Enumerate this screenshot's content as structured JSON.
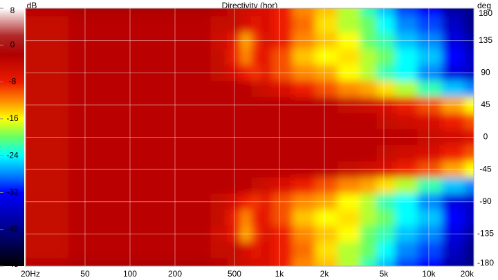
{
  "chart_data": {
    "type": "heatmap",
    "title": "Directivity (hor)",
    "colorbar_label": "dB",
    "y_label": "deg",
    "x": [
      20,
      30,
      50,
      70,
      100,
      150,
      200,
      300,
      400,
      500,
      600,
      700,
      800,
      1000,
      1500,
      2000,
      3000,
      4000,
      5000,
      7000,
      10000,
      15000,
      20000
    ],
    "y": [
      180,
      157.5,
      135,
      112.5,
      90,
      67.5,
      45,
      22.5,
      0,
      -22.5,
      -45,
      -67.5,
      -90,
      -112.5,
      -135,
      -157.5,
      -180
    ],
    "values": [
      [
        -3,
        -3,
        -2,
        -2,
        -2,
        -2,
        -2,
        -2,
        -3,
        -4,
        -5,
        -6,
        -6,
        -8,
        -12,
        -14,
        -18,
        -22,
        -26,
        -30,
        -32,
        -38,
        -40
      ],
      [
        -4,
        -4,
        -3,
        -3,
        -3,
        -3,
        -3,
        -3,
        -4,
        -4,
        -6,
        -7,
        -6,
        -8,
        -11,
        -15,
        -18,
        -20,
        -24,
        -28,
        -30,
        -36,
        -40
      ],
      [
        -4,
        -4,
        -3,
        -3,
        -3,
        -3,
        -3,
        -3,
        -5,
        -7,
        -13,
        -9,
        -6,
        -8,
        -12,
        -14,
        -16,
        -20,
        -22,
        -26,
        -28,
        -34,
        -38
      ],
      [
        -4,
        -4,
        -3,
        -3,
        -3,
        -3,
        -3,
        -3,
        -4,
        -8,
        -12,
        -8,
        -7,
        -10,
        -14,
        -16,
        -15,
        -18,
        -20,
        -24,
        -26,
        -32,
        -36
      ],
      [
        -4,
        -4,
        -3,
        -3,
        -3,
        -3,
        -3,
        -3,
        -4,
        -6,
        -8,
        -9,
        -7,
        -10,
        -12,
        -13,
        -16,
        -18,
        -22,
        -24,
        -28,
        -34,
        -36
      ],
      [
        -4,
        -4,
        -3,
        -3,
        -3,
        -3,
        -3,
        -3,
        -3,
        -3,
        -3,
        -4,
        -5,
        -6,
        -8,
        -10,
        -12,
        -13,
        -15,
        -18,
        -22,
        -26,
        -28
      ],
      [
        -4,
        -4,
        -3,
        -3,
        -3,
        -3,
        -3,
        -3,
        -3,
        -3,
        -3,
        -3,
        -3,
        -3,
        -3,
        -3,
        -4,
        -5,
        -6,
        -8,
        -10,
        -13,
        -16
      ],
      [
        -4,
        -4,
        -3,
        -3,
        -3,
        -3,
        -3,
        -3,
        -3,
        -3,
        -3,
        -3,
        -3,
        -3,
        -3,
        -3,
        -3,
        -3,
        -4,
        -5,
        -6,
        -8,
        -10
      ],
      [
        -4,
        -4,
        -3,
        -3,
        -3,
        -3,
        -3,
        -3,
        -3,
        -3,
        -3,
        -3,
        -3,
        -3,
        -3,
        -3,
        -3,
        -3,
        -3,
        -3,
        -4,
        -5,
        -6
      ],
      [
        -4,
        -4,
        -3,
        -3,
        -3,
        -3,
        -3,
        -3,
        -3,
        -3,
        -3,
        -3,
        -3,
        -3,
        -3,
        -3,
        -3,
        -3,
        -4,
        -5,
        -6,
        -8,
        -10
      ],
      [
        -4,
        -4,
        -3,
        -3,
        -3,
        -3,
        -3,
        -3,
        -3,
        -3,
        -3,
        -3,
        -3,
        -3,
        -3,
        -3,
        -4,
        -5,
        -6,
        -8,
        -10,
        -13,
        -16
      ],
      [
        -4,
        -4,
        -3,
        -3,
        -3,
        -3,
        -3,
        -3,
        -3,
        -3,
        -3,
        -4,
        -5,
        -6,
        -8,
        -10,
        -12,
        -13,
        -15,
        -18,
        -22,
        -26,
        -28
      ],
      [
        -4,
        -4,
        -3,
        -3,
        -3,
        -3,
        -3,
        -3,
        -4,
        -6,
        -8,
        -9,
        -7,
        -10,
        -12,
        -13,
        -16,
        -18,
        -22,
        -24,
        -28,
        -34,
        -36
      ],
      [
        -4,
        -4,
        -3,
        -3,
        -3,
        -3,
        -3,
        -3,
        -4,
        -8,
        -12,
        -8,
        -7,
        -10,
        -14,
        -16,
        -15,
        -18,
        -20,
        -24,
        -26,
        -32,
        -36
      ],
      [
        -4,
        -4,
        -3,
        -3,
        -3,
        -3,
        -3,
        -3,
        -5,
        -7,
        -13,
        -9,
        -6,
        -8,
        -12,
        -14,
        -16,
        -20,
        -22,
        -26,
        -28,
        -34,
        -38
      ],
      [
        -4,
        -4,
        -3,
        -3,
        -3,
        -3,
        -3,
        -3,
        -4,
        -4,
        -6,
        -7,
        -6,
        -8,
        -11,
        -15,
        -18,
        -20,
        -24,
        -28,
        -30,
        -36,
        -40
      ],
      [
        -3,
        -3,
        -2,
        -2,
        -2,
        -2,
        -2,
        -2,
        -3,
        -4,
        -5,
        -6,
        -6,
        -8,
        -12,
        -14,
        -18,
        -22,
        -26,
        -30,
        -32,
        -38,
        -40
      ]
    ],
    "x_log": true,
    "xlim": [
      20,
      20000
    ],
    "xticks": [
      {
        "value": 20,
        "label": "20Hz"
      },
      50,
      100,
      200,
      500,
      {
        "value": 1000,
        "label": "1k"
      },
      {
        "value": 2000,
        "label": "2k"
      },
      {
        "value": 5000,
        "label": "5k"
      },
      {
        "value": 10000,
        "label": "10k"
      },
      {
        "value": 20000,
        "label": "20k"
      }
    ],
    "ylim": [
      -180,
      180
    ],
    "yticks": [
      180,
      135,
      90,
      45,
      0,
      -45,
      -90,
      -135,
      -180
    ],
    "zlim": [
      -48,
      8
    ],
    "zticks": [
      8,
      0,
      -8,
      -16,
      -24,
      -32,
      -40,
      -48
    ],
    "grid": true,
    "colorscale": [
      [
        8,
        "#ffffff"
      ],
      [
        2,
        "#b02828"
      ],
      [
        -2,
        "#b00000"
      ],
      [
        -8,
        "#ee1a00"
      ],
      [
        -12,
        "#ff8800"
      ],
      [
        -16,
        "#ffff00"
      ],
      [
        -20,
        "#66ff66"
      ],
      [
        -24,
        "#00ffff"
      ],
      [
        -28,
        "#0088ff"
      ],
      [
        -32,
        "#0000ff"
      ],
      [
        -40,
        "#000088"
      ],
      [
        -48,
        "#000000"
      ]
    ]
  }
}
